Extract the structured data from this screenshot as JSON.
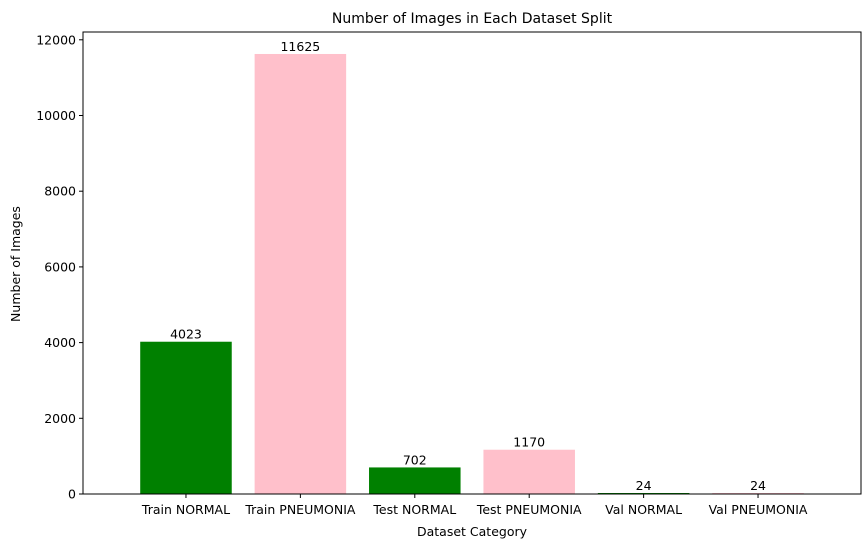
{
  "chart_data": {
    "type": "bar",
    "title": "Number of Images in Each Dataset Split",
    "xlabel": "Dataset Category",
    "ylabel": "Number of Images",
    "categories": [
      "Train NORMAL",
      "Train PNEUMONIA",
      "Test NORMAL",
      "Test PNEUMONIA",
      "Val NORMAL",
      "Val PNEUMONIA"
    ],
    "values": [
      4023,
      11625,
      702,
      1170,
      24,
      24
    ],
    "data_labels": [
      "4023",
      "11625",
      "702",
      "1170",
      "24",
      "24"
    ],
    "bar_colors": [
      "#008000",
      "#ffc0cb",
      "#008000",
      "#ffc0cb",
      "#008000",
      "#ffc0cb"
    ],
    "ylim": [
      0,
      12206
    ],
    "yticks": [
      0,
      2000,
      4000,
      6000,
      8000,
      10000,
      12000
    ],
    "ytick_labels": [
      "0",
      "2000",
      "4000",
      "6000",
      "8000",
      "10000",
      "12000"
    ],
    "grid": false,
    "legend": "none"
  }
}
